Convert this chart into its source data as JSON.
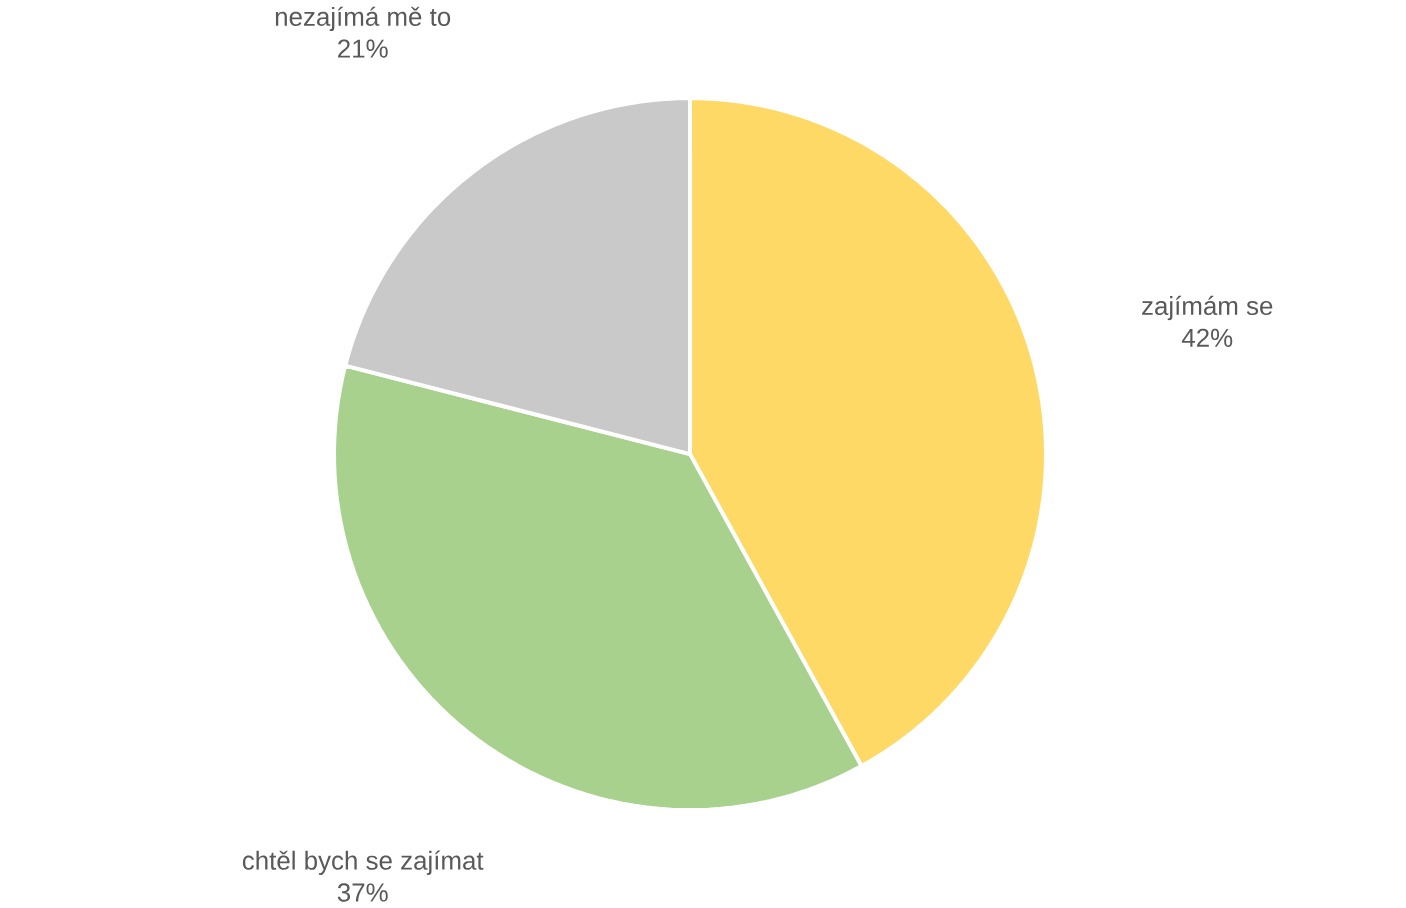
{
  "chart_data": {
    "type": "pie",
    "categories": [
      "zajímám se",
      "chtěl bych se zajímat",
      "nezajímá mě to"
    ],
    "values": [
      42,
      37,
      21
    ],
    "value_labels": [
      "42%",
      "37%",
      "21%"
    ],
    "colors": [
      "#ffd966",
      "#a9d18e",
      "#c9c9c9"
    ]
  }
}
